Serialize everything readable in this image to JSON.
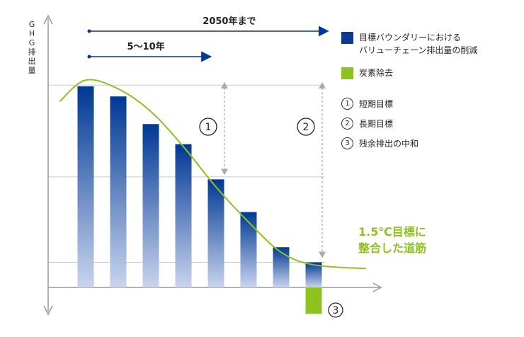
{
  "chart_data": {
    "type": "bar",
    "title": "",
    "ylabel": "GHG排出量",
    "ylabel_chars": [
      "G",
      "H",
      "G",
      "排",
      "出",
      "量"
    ],
    "xlabel": "",
    "ylim": [
      -1.05,
      9.05
    ],
    "grid": true,
    "series": [
      {
        "name": "目標バウンダリーにおけるバリューチェーン排出量の削減",
        "values": [
          8.0,
          7.6,
          6.5,
          5.7,
          4.3,
          3.0,
          1.6,
          1.0
        ],
        "color_top": "#003893",
        "color_bottom": "#c9d4ee"
      },
      {
        "name": "炭素除去",
        "values": [
          0,
          0,
          0,
          0,
          0,
          0,
          0,
          -1.05
        ],
        "color": "#8dc21f"
      }
    ],
    "pathway_curve": {
      "name": "1.5℃目標に整合した道筋",
      "color": "#8dc21f",
      "points": [
        [
          -0.8,
          7.4
        ],
        [
          0,
          8.25
        ],
        [
          1,
          7.9
        ],
        [
          2,
          7.0
        ],
        [
          3,
          5.6
        ],
        [
          4,
          4.0
        ],
        [
          5,
          2.6
        ],
        [
          6,
          1.4
        ],
        [
          7,
          0.9
        ],
        [
          8.6,
          0.75
        ]
      ]
    },
    "time_arrows": [
      {
        "label": "2050年まで",
        "from": 0,
        "to": 7.3
      },
      {
        "label": "5〜10年",
        "from": 0,
        "to": 3.7
      }
    ],
    "gaps": [
      {
        "label": "①",
        "bar": 4,
        "top": 8.0,
        "bottom": 4.3
      },
      {
        "label": "②",
        "bar": 7,
        "top": 8.0,
        "bottom": 1.0
      }
    ],
    "neutralization_label": "③",
    "legend_position": "right"
  },
  "legend": {
    "items": [
      {
        "label": "目標バウンダリーにおける\nバリューチェーン排出量の削減",
        "color": "#0a3a91"
      },
      {
        "label": "炭素除去",
        "color": "#8dc21f"
      }
    ],
    "numbered": [
      {
        "num": "1",
        "label": "短期目標"
      },
      {
        "num": "2",
        "label": "長期目標"
      },
      {
        "num": "3",
        "label": "残余排出の中和"
      }
    ]
  },
  "curve_label": {
    "line1": "1.5℃目標に",
    "line2": "整合した道筋"
  }
}
